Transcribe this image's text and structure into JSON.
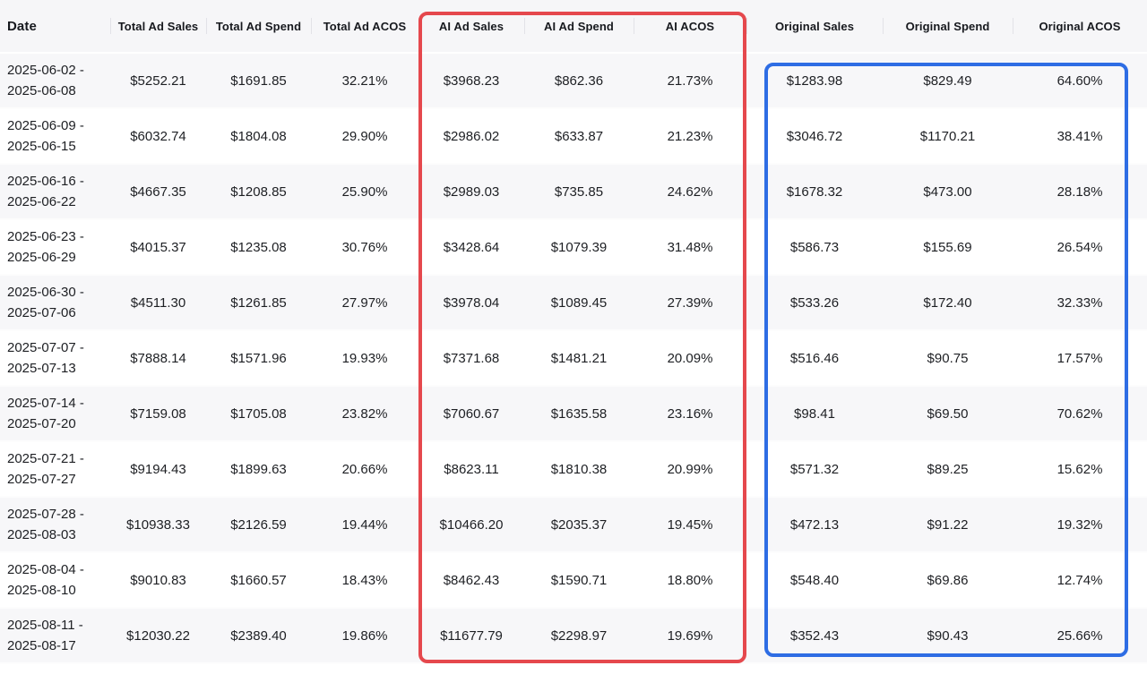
{
  "table": {
    "columns": [
      {
        "label": "Date"
      },
      {
        "label": "Total Ad Sales"
      },
      {
        "label": "Total Ad Spend"
      },
      {
        "label": "Total Ad ACOS"
      },
      {
        "label": "AI Ad Sales"
      },
      {
        "label": "AI Ad Spend"
      },
      {
        "label": "AI ACOS"
      },
      {
        "label": "Original Sales"
      },
      {
        "label": "Original Spend"
      },
      {
        "label": "Original ACOS"
      }
    ],
    "rows": [
      {
        "date_line1": "2025-06-02 -",
        "date_line2": "2025-06-08",
        "total_ad_sales": "$5252.21",
        "total_ad_spend": "$1691.85",
        "total_ad_acos": "32.21%",
        "ai_ad_sales": "$3968.23",
        "ai_ad_spend": "$862.36",
        "ai_acos": "21.73%",
        "original_sales": "$1283.98",
        "original_spend": "$829.49",
        "original_acos": "64.60%"
      },
      {
        "date_line1": "2025-06-09 -",
        "date_line2": "2025-06-15",
        "total_ad_sales": "$6032.74",
        "total_ad_spend": "$1804.08",
        "total_ad_acos": "29.90%",
        "ai_ad_sales": "$2986.02",
        "ai_ad_spend": "$633.87",
        "ai_acos": "21.23%",
        "original_sales": "$3046.72",
        "original_spend": "$1170.21",
        "original_acos": "38.41%"
      },
      {
        "date_line1": "2025-06-16 -",
        "date_line2": "2025-06-22",
        "total_ad_sales": "$4667.35",
        "total_ad_spend": "$1208.85",
        "total_ad_acos": "25.90%",
        "ai_ad_sales": "$2989.03",
        "ai_ad_spend": "$735.85",
        "ai_acos": "24.62%",
        "original_sales": "$1678.32",
        "original_spend": "$473.00",
        "original_acos": "28.18%"
      },
      {
        "date_line1": "2025-06-23 -",
        "date_line2": "2025-06-29",
        "total_ad_sales": "$4015.37",
        "total_ad_spend": "$1235.08",
        "total_ad_acos": "30.76%",
        "ai_ad_sales": "$3428.64",
        "ai_ad_spend": "$1079.39",
        "ai_acos": "31.48%",
        "original_sales": "$586.73",
        "original_spend": "$155.69",
        "original_acos": "26.54%"
      },
      {
        "date_line1": "2025-06-30 -",
        "date_line2": "2025-07-06",
        "total_ad_sales": "$4511.30",
        "total_ad_spend": "$1261.85",
        "total_ad_acos": "27.97%",
        "ai_ad_sales": "$3978.04",
        "ai_ad_spend": "$1089.45",
        "ai_acos": "27.39%",
        "original_sales": "$533.26",
        "original_spend": "$172.40",
        "original_acos": "32.33%"
      },
      {
        "date_line1": "2025-07-07 -",
        "date_line2": "2025-07-13",
        "total_ad_sales": "$7888.14",
        "total_ad_spend": "$1571.96",
        "total_ad_acos": "19.93%",
        "ai_ad_sales": "$7371.68",
        "ai_ad_spend": "$1481.21",
        "ai_acos": "20.09%",
        "original_sales": "$516.46",
        "original_spend": "$90.75",
        "original_acos": "17.57%"
      },
      {
        "date_line1": "2025-07-14 -",
        "date_line2": "2025-07-20",
        "total_ad_sales": "$7159.08",
        "total_ad_spend": "$1705.08",
        "total_ad_acos": "23.82%",
        "ai_ad_sales": "$7060.67",
        "ai_ad_spend": "$1635.58",
        "ai_acos": "23.16%",
        "original_sales": "$98.41",
        "original_spend": "$69.50",
        "original_acos": "70.62%"
      },
      {
        "date_line1": "2025-07-21 -",
        "date_line2": "2025-07-27",
        "total_ad_sales": "$9194.43",
        "total_ad_spend": "$1899.63",
        "total_ad_acos": "20.66%",
        "ai_ad_sales": "$8623.11",
        "ai_ad_spend": "$1810.38",
        "ai_acos": "20.99%",
        "original_sales": "$571.32",
        "original_spend": "$89.25",
        "original_acos": "15.62%"
      },
      {
        "date_line1": "2025-07-28 -",
        "date_line2": "2025-08-03",
        "total_ad_sales": "$10938.33",
        "total_ad_spend": "$2126.59",
        "total_ad_acos": "19.44%",
        "ai_ad_sales": "$10466.20",
        "ai_ad_spend": "$2035.37",
        "ai_acos": "19.45%",
        "original_sales": "$472.13",
        "original_spend": "$91.22",
        "original_acos": "19.32%"
      },
      {
        "date_line1": "2025-08-04 -",
        "date_line2": "2025-08-10",
        "total_ad_sales": "$9010.83",
        "total_ad_spend": "$1660.57",
        "total_ad_acos": "18.43%",
        "ai_ad_sales": "$8462.43",
        "ai_ad_spend": "$1590.71",
        "ai_acos": "18.80%",
        "original_sales": "$548.40",
        "original_spend": "$69.86",
        "original_acos": "12.74%"
      },
      {
        "date_line1": "2025-08-11 -",
        "date_line2": "2025-08-17",
        "total_ad_sales": "$12030.22",
        "total_ad_spend": "$2389.40",
        "total_ad_acos": "19.86%",
        "ai_ad_sales": "$11677.79",
        "ai_ad_spend": "$2298.97",
        "ai_acos": "19.69%",
        "original_sales": "$352.43",
        "original_spend": "$90.43",
        "original_acos": "25.66%"
      }
    ]
  },
  "highlights": {
    "ai_columns_box": {
      "color": "#e5484d",
      "wraps": "AI Ad Sales / AI Ad Spend / AI ACOS"
    },
    "original_columns_box": {
      "color": "#2e6de4",
      "wraps": "Original Sales / Original Spend / Original ACOS"
    }
  }
}
